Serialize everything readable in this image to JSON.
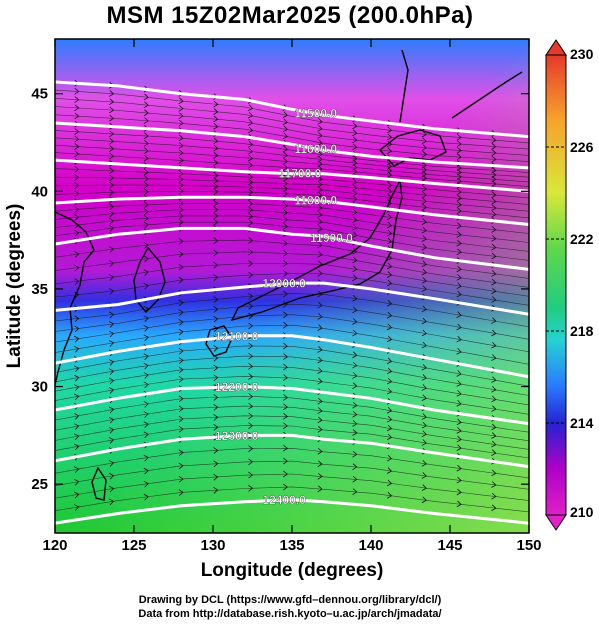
{
  "title": "MSM 15Z02Mar2025 (200.0hPa)",
  "axes": {
    "xlabel": "Longitude (degrees)",
    "ylabel": "Latitude  (degrees)",
    "x_ticks": [
      "120",
      "125",
      "130",
      "135",
      "140",
      "145",
      "150"
    ],
    "y_ticks": [
      "25",
      "30",
      "35",
      "40",
      "45"
    ]
  },
  "colorbar": {
    "ticks": [
      "230",
      "226",
      "222",
      "218",
      "214",
      "210"
    ],
    "range": [
      210,
      230
    ]
  },
  "contour_labels": [
    "11500.0",
    "11600.0",
    "11700.0",
    "11800.0",
    "11900.0",
    "12000.0",
    "12100.0",
    "12200.0",
    "12300.0",
    "12400.0"
  ],
  "credits": {
    "line1": "Drawing by DCL (https://www.gfd–dennou.org/library/dcl/)",
    "line2": "Data from http://database.rish.kyoto–u.ac.jp/arch/jmadata/"
  },
  "chart_data": {
    "type": "heatmap",
    "title": "MSM 15Z02Mar2025 (200.0hPa)",
    "xlabel": "Longitude (degrees)",
    "ylabel": "Latitude  (degrees)",
    "xlim": [
      120,
      150
    ],
    "ylim": [
      22.5,
      47.8
    ],
    "colorbar_range": [
      210,
      230
    ],
    "contours": [
      {
        "label": "11500.0",
        "lon": [
          120,
          124,
          128,
          132,
          135,
          137,
          140,
          144,
          150
        ],
        "lat": [
          45.6,
          45.4,
          45.0,
          44.7,
          44.2,
          43.9,
          43.6,
          43.2,
          42.8
        ]
      },
      {
        "label": "11600.0",
        "lon": [
          120,
          124,
          128,
          132,
          135,
          137,
          140,
          144,
          150
        ],
        "lat": [
          43.5,
          43.3,
          43.1,
          42.8,
          42.4,
          42.1,
          41.8,
          41.5,
          41.2
        ]
      },
      {
        "label": "11700.0",
        "lon": [
          120,
          124,
          128,
          132,
          135,
          137,
          140,
          144,
          150
        ],
        "lat": [
          41.6,
          41.4,
          41.2,
          41.0,
          40.9,
          40.9,
          40.7,
          40.4,
          40.0
        ]
      },
      {
        "label": "11800.0",
        "lon": [
          120,
          124,
          128,
          132,
          135,
          137,
          140,
          144,
          150
        ],
        "lat": [
          39.4,
          39.6,
          39.7,
          39.7,
          39.6,
          39.5,
          39.2,
          38.8,
          38.3
        ]
      },
      {
        "label": "11900.0",
        "lon": [
          120,
          124,
          128,
          132,
          135,
          137,
          140,
          144,
          150
        ],
        "lat": [
          37.3,
          37.8,
          38.1,
          38.1,
          37.8,
          37.7,
          37.2,
          36.6,
          36.0
        ]
      },
      {
        "label": "12000.0",
        "lon": [
          120,
          124,
          128,
          132,
          135,
          137,
          140,
          144,
          150
        ],
        "lat": [
          33.9,
          34.2,
          34.8,
          35.1,
          35.3,
          35.3,
          35.0,
          34.5,
          33.7
        ]
      },
      {
        "label": "12100.0",
        "lon": [
          120,
          124,
          128,
          132,
          135,
          137,
          140,
          144,
          150
        ],
        "lat": [
          31.2,
          31.8,
          32.3,
          32.6,
          32.6,
          32.4,
          32.0,
          31.4,
          30.5
        ]
      },
      {
        "label": "12200.0",
        "lon": [
          120,
          124,
          128,
          132,
          135,
          137,
          140,
          144,
          150
        ],
        "lat": [
          28.8,
          29.4,
          29.9,
          30.0,
          29.9,
          29.7,
          29.4,
          28.8,
          28.1
        ]
      },
      {
        "label": "12300.0",
        "lon": [
          120,
          124,
          128,
          132,
          135,
          137,
          140,
          144,
          150
        ],
        "lat": [
          26.2,
          26.8,
          27.3,
          27.5,
          27.5,
          27.3,
          27.1,
          26.6,
          25.9
        ]
      },
      {
        "label": "12400.0",
        "lon": [
          120,
          124,
          128,
          132,
          135,
          137,
          140,
          144,
          150
        ],
        "lat": [
          23.0,
          23.5,
          23.9,
          24.1,
          24.2,
          24.1,
          23.9,
          23.5,
          23.0
        ]
      }
    ]
  }
}
